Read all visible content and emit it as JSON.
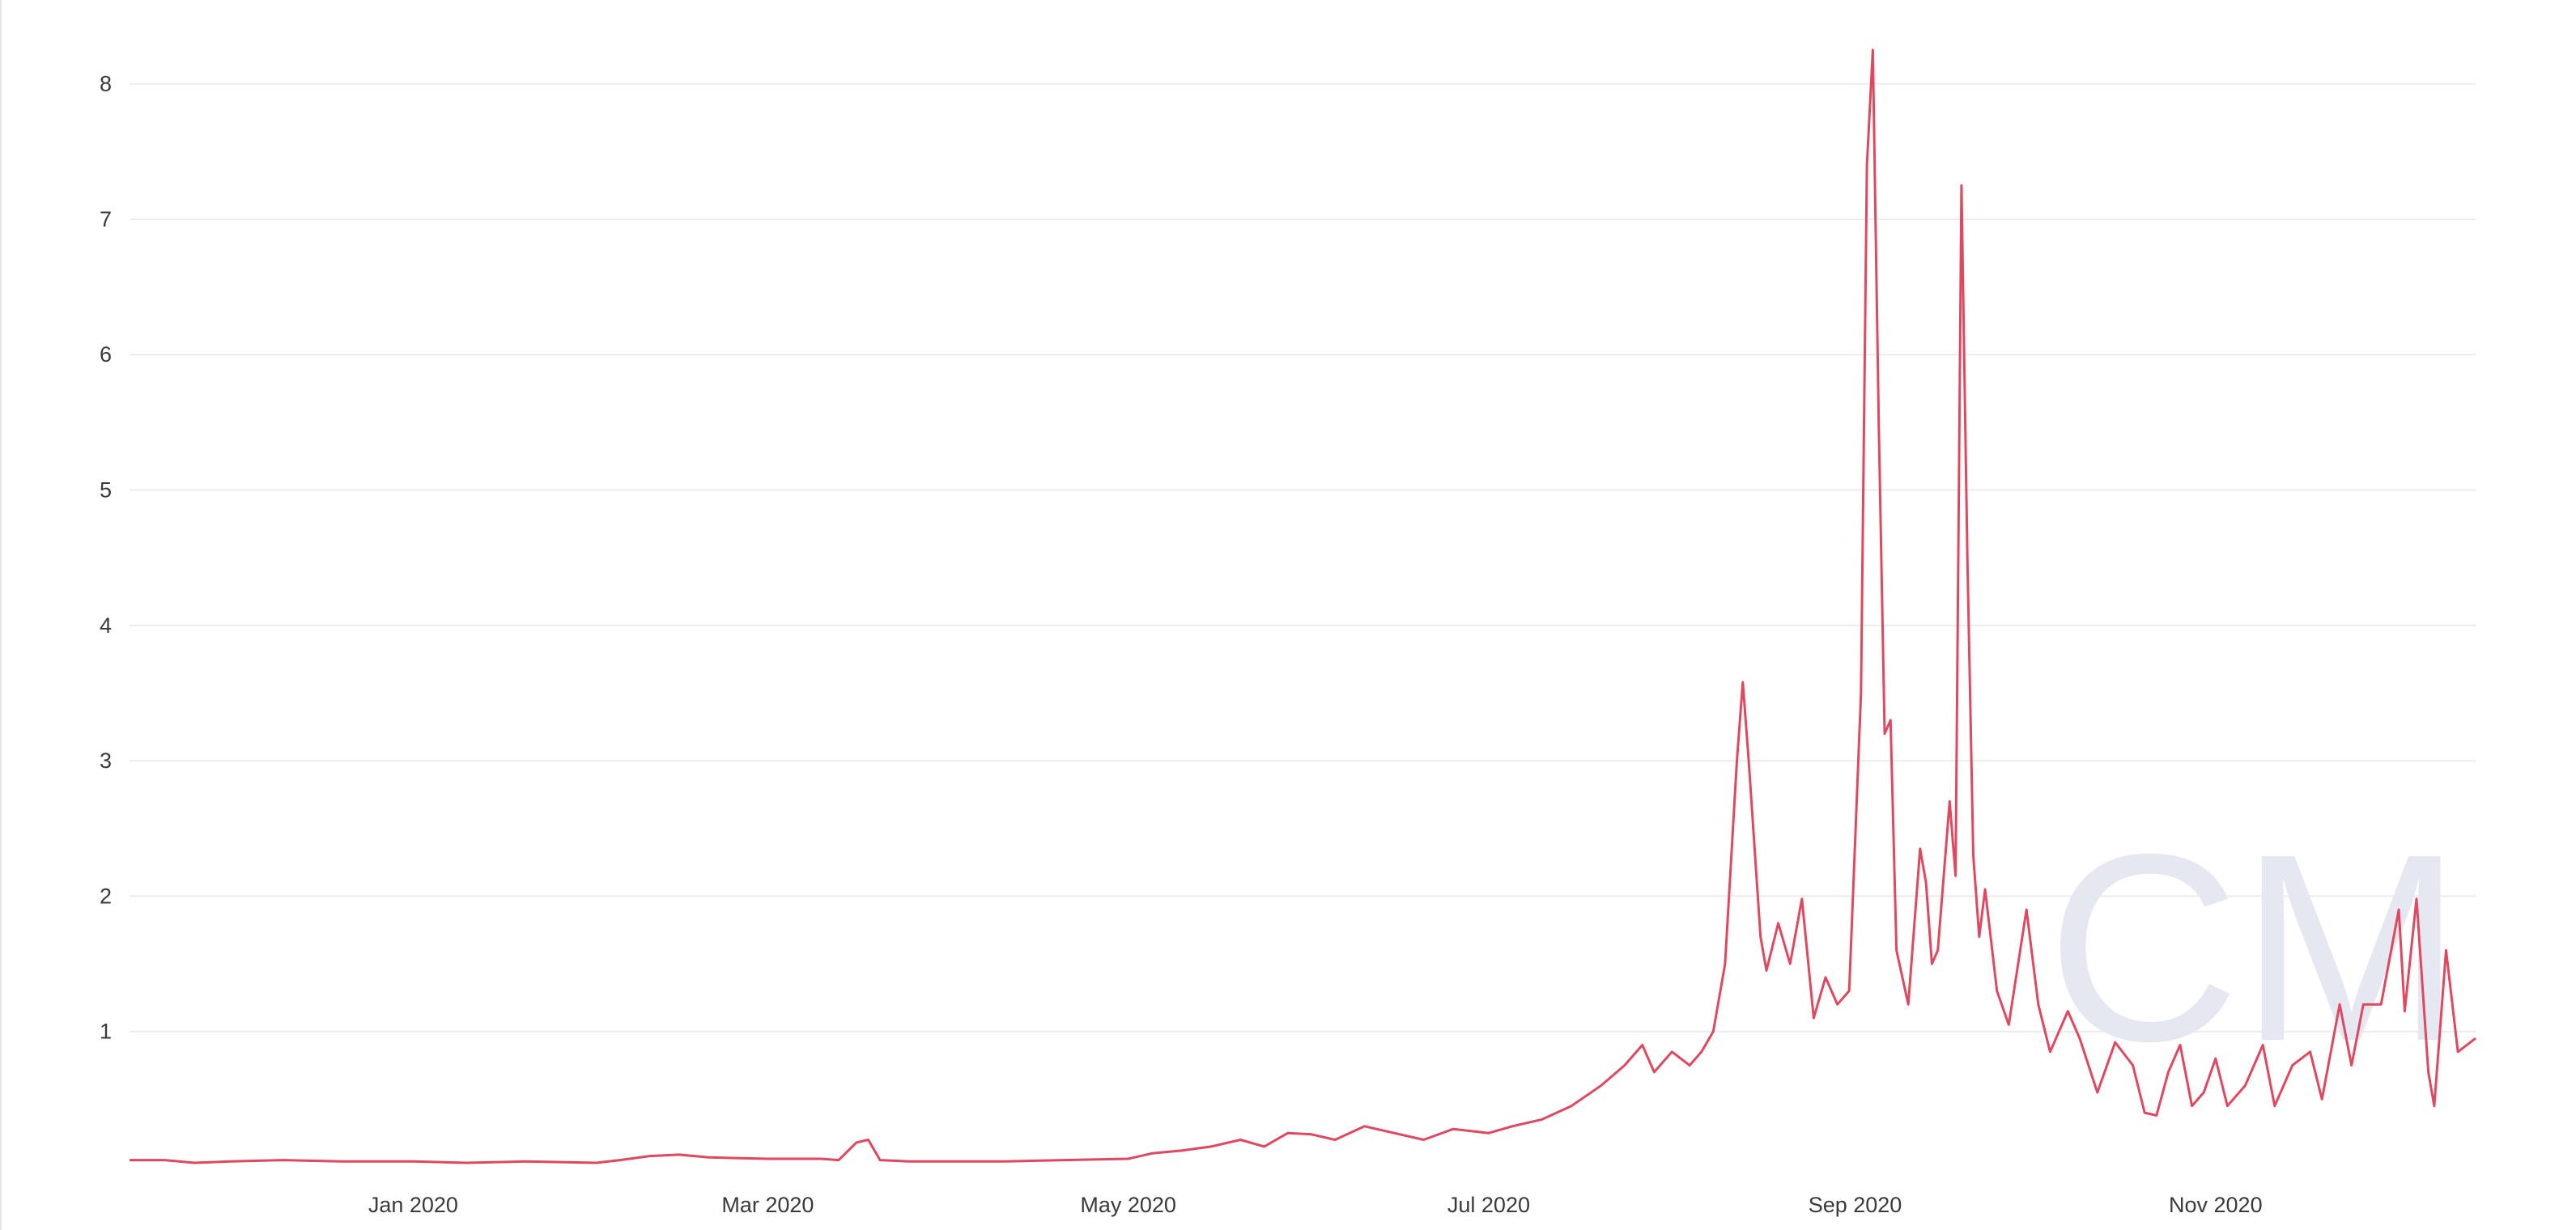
{
  "chart_data": {
    "type": "line",
    "title": "",
    "xlabel": "",
    "ylabel": "",
    "x_range": [
      "2019-11-14",
      "2020-12-15"
    ],
    "ylim": [
      0,
      8.5
    ],
    "grid": true,
    "legend": "none",
    "yticks": [
      "1",
      "2",
      "3",
      "4",
      "5",
      "6",
      "7",
      "8"
    ],
    "yticks_values": [
      1,
      2,
      3,
      4,
      5,
      6,
      7,
      8
    ],
    "xticks": [
      "Jan 2020",
      "Mar 2020",
      "May 2020",
      "Jul 2020",
      "Sep 2020",
      "Nov 2020"
    ],
    "xticks_dates": [
      "2020-01-01",
      "2020-03-01",
      "2020-05-01",
      "2020-07-01",
      "2020-09-01",
      "2020-11-01"
    ],
    "series": [
      {
        "color": "#e0485f",
        "points": [
          [
            "2019-11-14",
            0.05
          ],
          [
            "2019-11-20",
            0.05
          ],
          [
            "2019-11-25",
            0.03
          ],
          [
            "2019-12-01",
            0.04
          ],
          [
            "2019-12-10",
            0.05
          ],
          [
            "2019-12-20",
            0.04
          ],
          [
            "2020-01-01",
            0.04
          ],
          [
            "2020-01-10",
            0.03
          ],
          [
            "2020-01-20",
            0.04
          ],
          [
            "2020-02-01",
            0.03
          ],
          [
            "2020-02-05",
            0.05
          ],
          [
            "2020-02-10",
            0.08
          ],
          [
            "2020-02-15",
            0.09
          ],
          [
            "2020-02-20",
            0.07
          ],
          [
            "2020-03-01",
            0.06
          ],
          [
            "2020-03-10",
            0.06
          ],
          [
            "2020-03-13",
            0.05
          ],
          [
            "2020-03-16",
            0.18
          ],
          [
            "2020-03-18",
            0.2
          ],
          [
            "2020-03-20",
            0.05
          ],
          [
            "2020-03-25",
            0.04
          ],
          [
            "2020-04-01",
            0.04
          ],
          [
            "2020-04-10",
            0.04
          ],
          [
            "2020-04-20",
            0.05
          ],
          [
            "2020-05-01",
            0.06
          ],
          [
            "2020-05-05",
            0.1
          ],
          [
            "2020-05-10",
            0.12
          ],
          [
            "2020-05-15",
            0.15
          ],
          [
            "2020-05-20",
            0.2
          ],
          [
            "2020-05-24",
            0.15
          ],
          [
            "2020-05-28",
            0.25
          ],
          [
            "2020-06-01",
            0.24
          ],
          [
            "2020-06-05",
            0.2
          ],
          [
            "2020-06-10",
            0.3
          ],
          [
            "2020-06-15",
            0.25
          ],
          [
            "2020-06-20",
            0.2
          ],
          [
            "2020-06-25",
            0.28
          ],
          [
            "2020-07-01",
            0.25
          ],
          [
            "2020-07-05",
            0.3
          ],
          [
            "2020-07-10",
            0.35
          ],
          [
            "2020-07-15",
            0.45
          ],
          [
            "2020-07-20",
            0.6
          ],
          [
            "2020-07-24",
            0.75
          ],
          [
            "2020-07-27",
            0.9
          ],
          [
            "2020-07-29",
            0.7
          ],
          [
            "2020-08-01",
            0.85
          ],
          [
            "2020-08-04",
            0.75
          ],
          [
            "2020-08-06",
            0.85
          ],
          [
            "2020-08-08",
            1.0
          ],
          [
            "2020-08-10",
            1.5
          ],
          [
            "2020-08-12",
            3.0
          ],
          [
            "2020-08-13",
            3.58
          ],
          [
            "2020-08-14",
            3.0
          ],
          [
            "2020-08-16",
            1.7
          ],
          [
            "2020-08-17",
            1.45
          ],
          [
            "2020-08-19",
            1.8
          ],
          [
            "2020-08-21",
            1.5
          ],
          [
            "2020-08-23",
            1.98
          ],
          [
            "2020-08-25",
            1.1
          ],
          [
            "2020-08-27",
            1.4
          ],
          [
            "2020-08-29",
            1.2
          ],
          [
            "2020-08-31",
            1.3
          ],
          [
            "2020-09-02",
            3.5
          ],
          [
            "2020-09-03",
            7.4
          ],
          [
            "2020-09-04",
            8.25
          ],
          [
            "2020-09-05",
            5.5
          ],
          [
            "2020-09-06",
            3.2
          ],
          [
            "2020-09-07",
            3.3
          ],
          [
            "2020-09-08",
            1.6
          ],
          [
            "2020-09-10",
            1.2
          ],
          [
            "2020-09-12",
            2.35
          ],
          [
            "2020-09-13",
            2.1
          ],
          [
            "2020-09-14",
            1.5
          ],
          [
            "2020-09-15",
            1.6
          ],
          [
            "2020-09-17",
            2.7
          ],
          [
            "2020-09-18",
            2.15
          ],
          [
            "2020-09-19",
            7.25
          ],
          [
            "2020-09-20",
            4.5
          ],
          [
            "2020-09-21",
            2.3
          ],
          [
            "2020-09-22",
            1.7
          ],
          [
            "2020-09-23",
            2.05
          ],
          [
            "2020-09-25",
            1.3
          ],
          [
            "2020-09-27",
            1.05
          ],
          [
            "2020-09-30",
            1.9
          ],
          [
            "2020-10-02",
            1.2
          ],
          [
            "2020-10-04",
            0.85
          ],
          [
            "2020-10-07",
            1.15
          ],
          [
            "2020-10-09",
            0.95
          ],
          [
            "2020-10-12",
            0.55
          ],
          [
            "2020-10-15",
            0.92
          ],
          [
            "2020-10-18",
            0.75
          ],
          [
            "2020-10-20",
            0.4
          ],
          [
            "2020-10-22",
            0.38
          ],
          [
            "2020-10-24",
            0.7
          ],
          [
            "2020-10-26",
            0.9
          ],
          [
            "2020-10-28",
            0.45
          ],
          [
            "2020-10-30",
            0.55
          ],
          [
            "2020-11-01",
            0.8
          ],
          [
            "2020-11-03",
            0.45
          ],
          [
            "2020-11-06",
            0.6
          ],
          [
            "2020-11-09",
            0.9
          ],
          [
            "2020-11-11",
            0.45
          ],
          [
            "2020-11-14",
            0.75
          ],
          [
            "2020-11-17",
            0.85
          ],
          [
            "2020-11-19",
            0.5
          ],
          [
            "2020-11-22",
            1.2
          ],
          [
            "2020-11-24",
            0.75
          ],
          [
            "2020-11-26",
            1.2
          ],
          [
            "2020-11-29",
            1.2
          ],
          [
            "2020-12-02",
            1.9
          ],
          [
            "2020-12-03",
            1.15
          ],
          [
            "2020-12-05",
            1.98
          ],
          [
            "2020-12-07",
            0.7
          ],
          [
            "2020-12-08",
            0.45
          ],
          [
            "2020-12-10",
            1.6
          ],
          [
            "2020-12-12",
            0.85
          ],
          [
            "2020-12-15",
            0.95
          ]
        ]
      }
    ]
  },
  "watermark": {
    "text": "CM",
    "color": "#e6e8f1"
  }
}
